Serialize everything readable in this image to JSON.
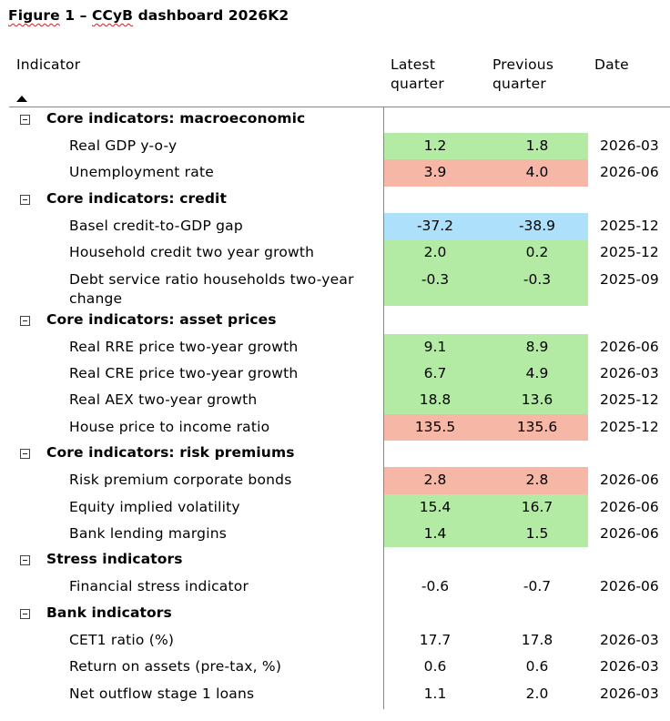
{
  "figure": {
    "title_prefix": "Figure",
    "title_mid": " 1 – ",
    "title_code": "CCyB",
    "title_suffix": " dashboard 2026K2"
  },
  "columns": {
    "indicator": "Indicator",
    "latest_line1": "Latest",
    "latest_line2": "quarter",
    "previous_line1": "Previous",
    "previous_line2": "quarter",
    "date": "Date"
  },
  "colors": {
    "green": "#b3eba4",
    "red": "#f7b7a6",
    "blue": "#ade0fb",
    "none": "transparent"
  },
  "groups": [
    {
      "label": "Core indicators: macroeconomic",
      "rows": [
        {
          "label": "Real GDP y-o-y",
          "latest": "1.2",
          "previous": "1.8",
          "date": "2026-03",
          "status": "green"
        },
        {
          "label": "Unemployment rate",
          "latest": "3.9",
          "previous": "4.0",
          "date": "2026-06",
          "status": "red"
        }
      ]
    },
    {
      "label": "Core indicators: credit",
      "rows": [
        {
          "label": "Basel credit-to-GDP gap",
          "latest": "-37.2",
          "previous": "-38.9",
          "date": "2025-12",
          "status": "blue"
        },
        {
          "label": "Household credit two year growth",
          "latest": "2.0",
          "previous": "0.2",
          "date": "2025-12",
          "status": "green"
        },
        {
          "label": "Debt service ratio households two-year change",
          "latest": "-0.3",
          "previous": "-0.3",
          "date": "2025-09",
          "status": "green"
        }
      ]
    },
    {
      "label": "Core indicators: asset prices",
      "rows": [
        {
          "label": "Real RRE price two-year growth",
          "latest": "9.1",
          "previous": "8.9",
          "date": "2026-06",
          "status": "green"
        },
        {
          "label": "Real CRE price two-year growth",
          "latest": "6.7",
          "previous": "4.9",
          "date": "2026-03",
          "status": "green"
        },
        {
          "label": "Real AEX two-year growth",
          "latest": "18.8",
          "previous": "13.6",
          "date": "2025-12",
          "status": "green"
        },
        {
          "label": "House price to income ratio",
          "latest": "135.5",
          "previous": "135.6",
          "date": "2025-12",
          "status": "red"
        }
      ]
    },
    {
      "label": "Core indicators: risk premiums",
      "rows": [
        {
          "label": "Risk premium corporate bonds",
          "latest": "2.8",
          "previous": "2.8",
          "date": "2026-06",
          "status": "red"
        },
        {
          "label": "Equity implied volatility",
          "latest": "15.4",
          "previous": "16.7",
          "date": "2026-06",
          "status": "green"
        },
        {
          "label": "Bank lending margins",
          "latest": "1.4",
          "previous": "1.5",
          "date": "2026-06",
          "status": "green"
        }
      ]
    },
    {
      "label": "Stress indicators",
      "rows": [
        {
          "label": "Financial stress indicator",
          "latest": "-0.6",
          "previous": "-0.7",
          "date": "2026-06",
          "status": "none"
        }
      ]
    },
    {
      "label": "Bank indicators",
      "rows": [
        {
          "label": "CET1 ratio (%)",
          "latest": "17.7",
          "previous": "17.8",
          "date": "2026-03",
          "status": "none"
        },
        {
          "label": "Return on assets (pre-tax, %)",
          "latest": "0.6",
          "previous": "0.6",
          "date": "2026-03",
          "status": "none"
        },
        {
          "label": "Net outflow stage 1 loans",
          "latest": "1.1",
          "previous": "2.0",
          "date": "2026-03",
          "status": "none"
        }
      ]
    }
  ]
}
